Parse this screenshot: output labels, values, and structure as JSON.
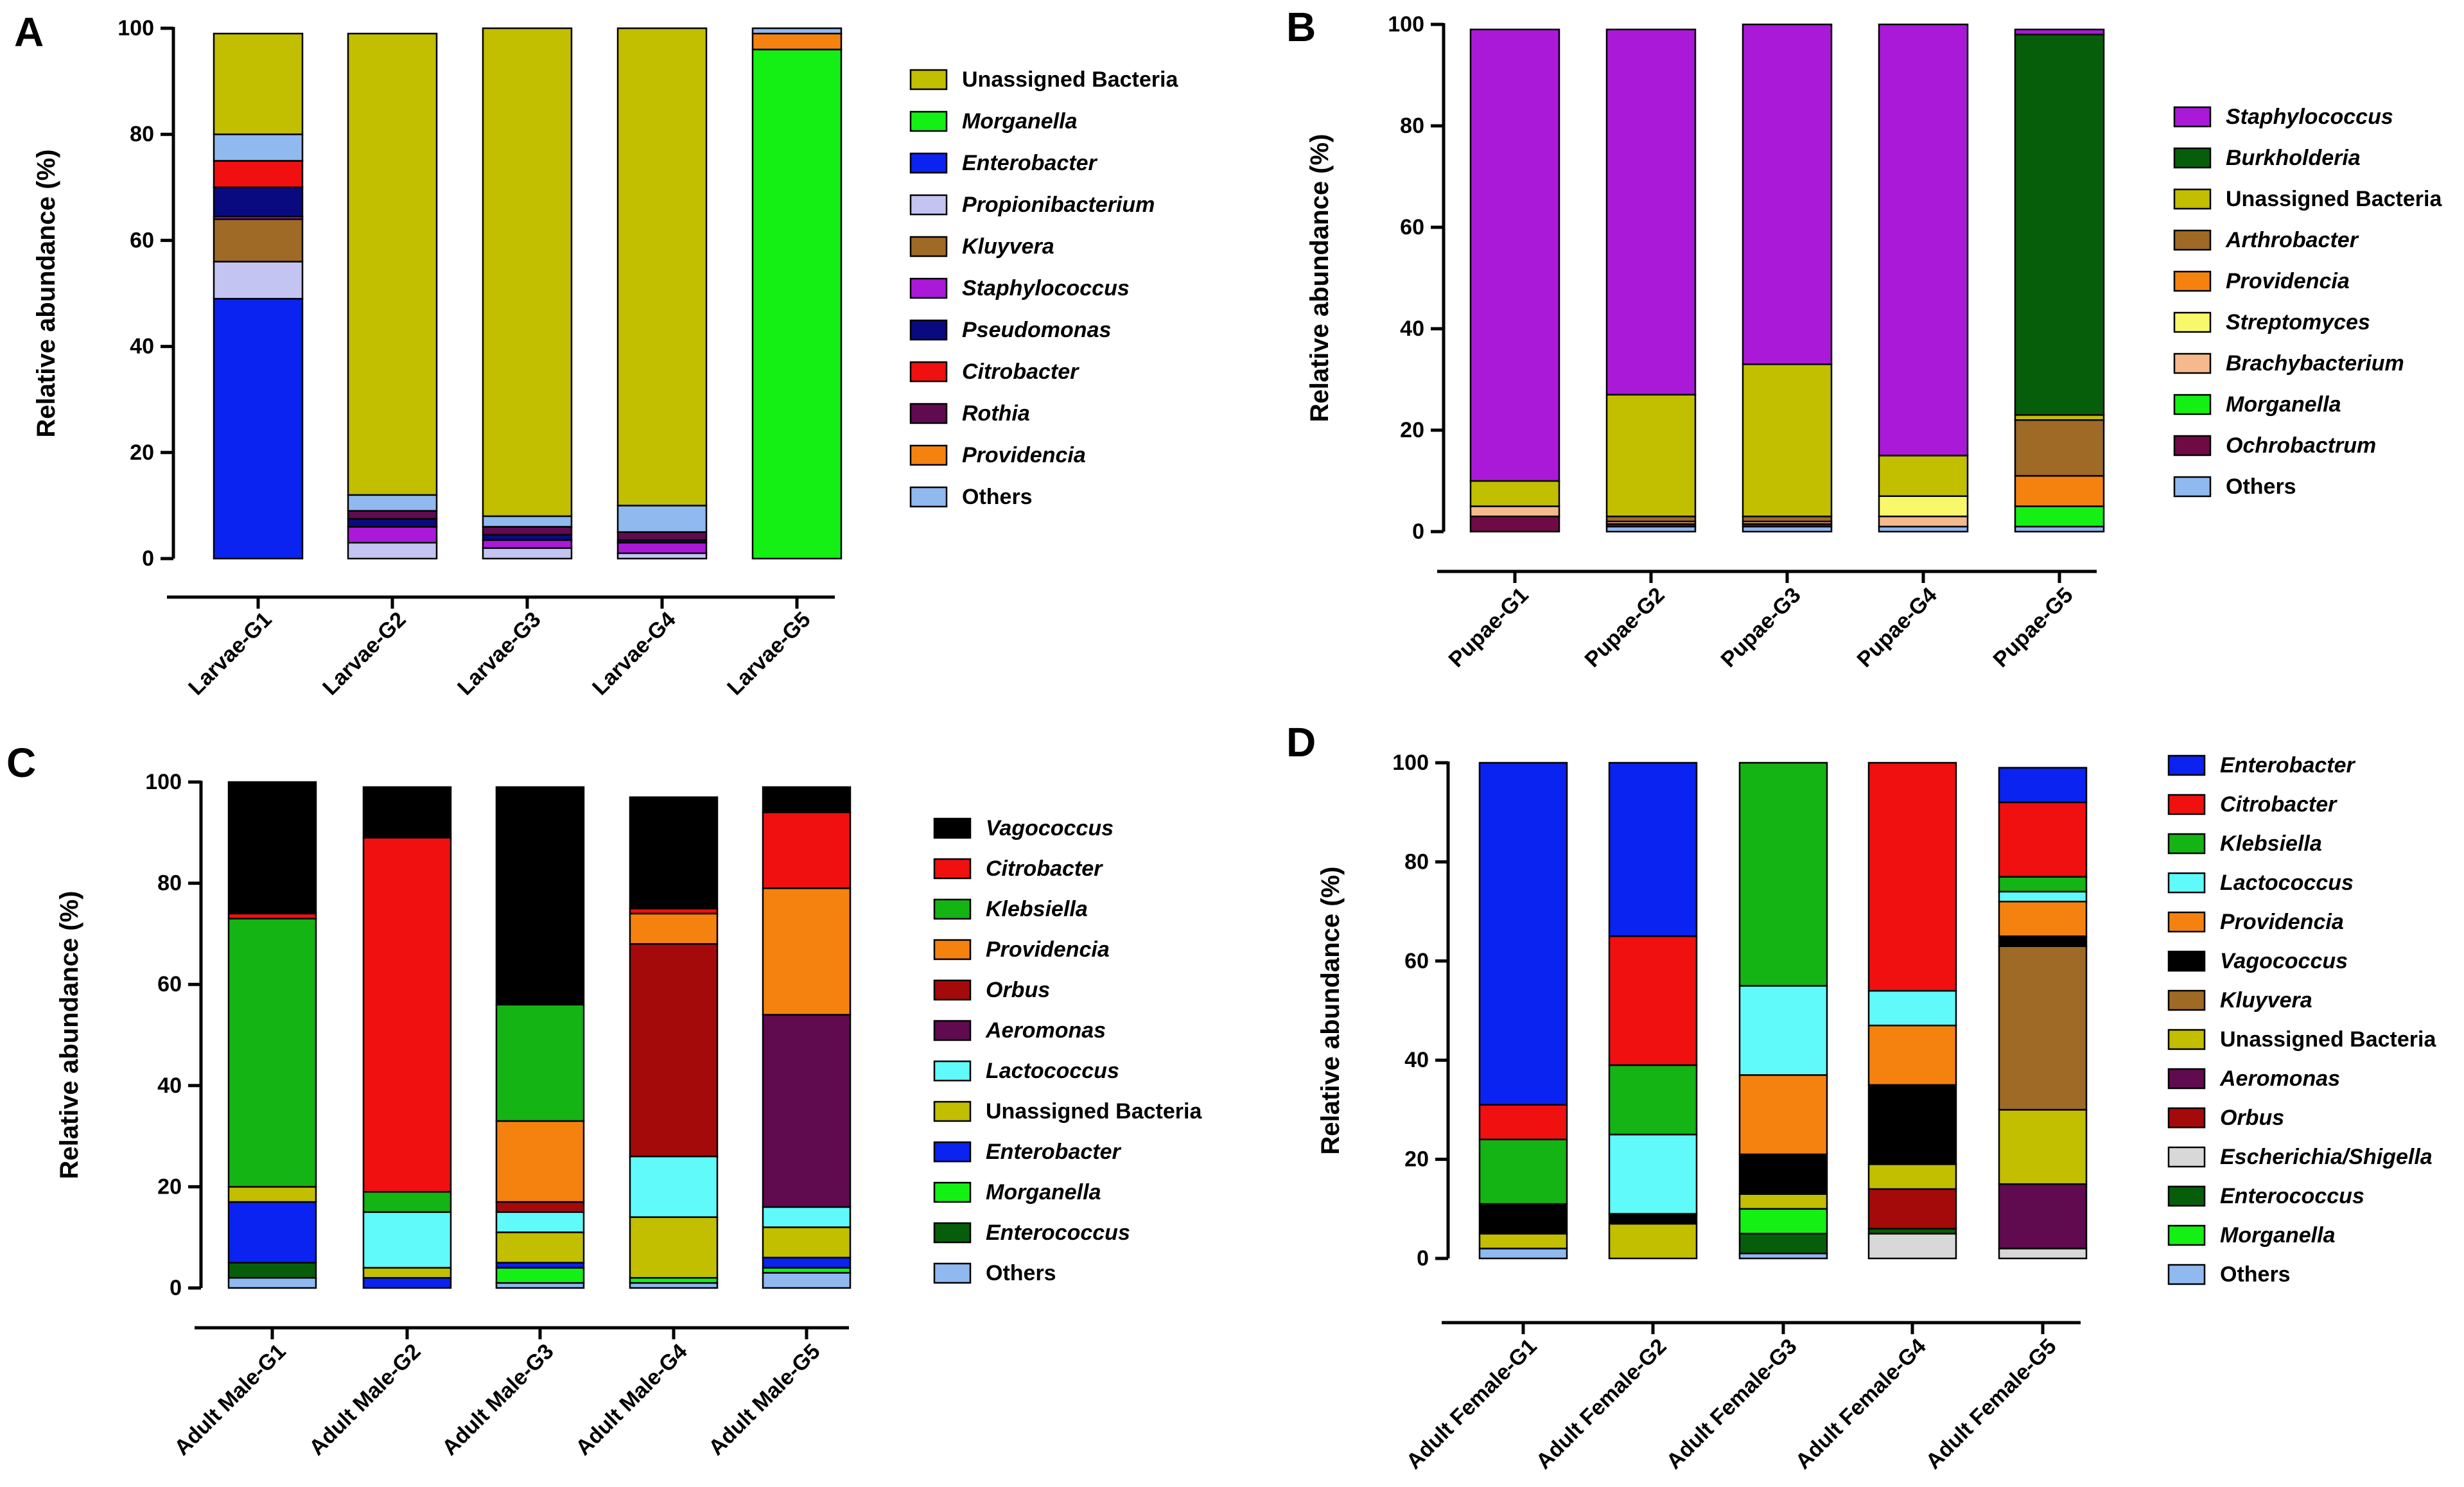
{
  "panels": [
    {
      "letter": "A",
      "chart_data": {
        "type": "bar",
        "stacked": true,
        "title": "",
        "xlabel": "",
        "ylabel": "Relative abundance (%)",
        "ylim": [
          0,
          100
        ],
        "yticks": [
          "0",
          "20",
          "40",
          "60",
          "80",
          "100"
        ],
        "categories": [
          "Larvae-G1",
          "Larvae-G2",
          "Larvae-G3",
          "Larvae-G4",
          "Larvae-G5"
        ],
        "series": [
          {
            "name": "Enterobacter",
            "italic": true,
            "color": "#0a23f0",
            "values": [
              49,
              0,
              0,
              0,
              0
            ]
          },
          {
            "name": "Propionibacterium",
            "italic": true,
            "color": "#c4c4f2",
            "values": [
              7,
              3,
              2,
              1,
              0
            ]
          },
          {
            "name": "Kluyvera",
            "italic": true,
            "color": "#9e6a25",
            "values": [
              8,
              0,
              0,
              0,
              0
            ]
          },
          {
            "name": "Staphylococcus",
            "italic": true,
            "color": "#aa19d8",
            "values": [
              0.5,
              3,
              1.5,
              2,
              0
            ]
          },
          {
            "name": "Pseudomonas",
            "italic": true,
            "color": "#0a0a80",
            "values": [
              5.5,
              1.5,
              1,
              0.5,
              0
            ]
          },
          {
            "name": "Citrobacter",
            "italic": true,
            "color": "#f01010",
            "values": [
              5,
              0,
              0,
              0,
              0
            ]
          },
          {
            "name": "Rothia",
            "italic": true,
            "color": "#600a50",
            "values": [
              0,
              1.5,
              1.5,
              1.5,
              0
            ]
          },
          {
            "name": "Morganella",
            "italic": true,
            "color": "#14f014",
            "values": [
              0,
              0,
              0,
              0,
              96
            ]
          },
          {
            "name": "Providencia",
            "italic": true,
            "color": "#f5820f",
            "values": [
              0,
              0,
              0,
              0,
              3
            ]
          },
          {
            "name": "Others",
            "italic": false,
            "color": "#8fb9ef",
            "values": [
              5,
              3,
              2,
              5,
              1
            ]
          },
          {
            "name": "Unassigned Bacteria",
            "italic": false,
            "color": "#c2be00",
            "values": [
              19,
              87,
              92,
              90,
              0
            ]
          }
        ],
        "legend_order": [
          "Unassigned Bacteria",
          "Morganella",
          "Enterobacter",
          "Propionibacterium",
          "Kluyvera",
          "Staphylococcus",
          "Pseudomonas",
          "Citrobacter",
          "Rothia",
          "Providencia",
          "Others"
        ],
        "legend_position": "right"
      }
    },
    {
      "letter": "B",
      "chart_data": {
        "type": "bar",
        "stacked": true,
        "title": "",
        "xlabel": "",
        "ylabel": "Relative abundance (%)",
        "ylim": [
          0,
          100
        ],
        "yticks": [
          "0",
          "20",
          "40",
          "60",
          "80",
          "100"
        ],
        "categories": [
          "Pupae-G1",
          "Pupae-G2",
          "Pupae-G3",
          "Pupae-G4",
          "Pupae-G5"
        ],
        "series": [
          {
            "name": "Others",
            "italic": false,
            "color": "#8fb9ef",
            "values": [
              0,
              1,
              1,
              1,
              1
            ]
          },
          {
            "name": "Ochrobactrum",
            "italic": true,
            "color": "#700a45",
            "values": [
              3,
              0.5,
              0.5,
              0,
              0
            ]
          },
          {
            "name": "Morganella",
            "italic": true,
            "color": "#14f014",
            "values": [
              0,
              0,
              0,
              0,
              4
            ]
          },
          {
            "name": "Brachybacterium",
            "italic": true,
            "color": "#f5b98c",
            "values": [
              2,
              0.5,
              0.5,
              2,
              0
            ]
          },
          {
            "name": "Streptomyces",
            "italic": true,
            "color": "#f8f86a",
            "values": [
              0,
              0,
              0,
              4,
              0
            ]
          },
          {
            "name": "Providencia",
            "italic": true,
            "color": "#f5820f",
            "values": [
              0,
              0,
              0,
              0,
              6
            ]
          },
          {
            "name": "Arthrobacter",
            "italic": true,
            "color": "#9e6a25",
            "values": [
              0,
              1,
              1,
              0,
              11
            ]
          },
          {
            "name": "Unassigned Bacteria",
            "italic": false,
            "color": "#c2be00",
            "values": [
              5,
              24,
              30,
              8,
              1
            ]
          },
          {
            "name": "Burkholderia",
            "italic": true,
            "color": "#075e0a",
            "values": [
              0,
              0,
              0,
              0,
              75
            ]
          },
          {
            "name": "Staphylococcus",
            "italic": true,
            "color": "#aa19d8",
            "values": [
              89,
              72,
              67,
              85,
              1
            ]
          }
        ],
        "legend_order": [
          "Staphylococcus",
          "Burkholderia",
          "Unassigned Bacteria",
          "Arthrobacter",
          "Providencia",
          "Streptomyces",
          "Brachybacterium",
          "Morganella",
          "Ochrobactrum",
          "Others"
        ],
        "legend_position": "right"
      }
    },
    {
      "letter": "C",
      "chart_data": {
        "type": "bar",
        "stacked": true,
        "title": "",
        "xlabel": "",
        "ylabel": "Relative abundance (%)",
        "ylim": [
          0,
          100
        ],
        "yticks": [
          "0",
          "20",
          "40",
          "60",
          "80",
          "100"
        ],
        "categories": [
          "Adult Male-G1",
          "Adult Male-G2",
          "Adult Male-G3",
          "Adult Male-G4",
          "Adult Male-G5"
        ],
        "series": [
          {
            "name": "Others",
            "italic": false,
            "color": "#8fb9ef",
            "values": [
              2,
              0,
              1,
              1,
              3
            ]
          },
          {
            "name": "Enterococcus",
            "italic": true,
            "color": "#075e0a",
            "values": [
              3,
              0,
              0,
              0,
              0
            ]
          },
          {
            "name": "Morganella",
            "italic": true,
            "color": "#14f014",
            "values": [
              0,
              0,
              3,
              1,
              1
            ]
          },
          {
            "name": "Enterobacter",
            "italic": true,
            "color": "#0a23f0",
            "values": [
              12,
              2,
              1,
              0,
              2
            ]
          },
          {
            "name": "Unassigned Bacteria",
            "italic": false,
            "color": "#c2be00",
            "values": [
              3,
              2,
              6,
              12,
              6
            ]
          },
          {
            "name": "Lactococcus",
            "italic": true,
            "color": "#60fafa",
            "values": [
              0,
              11,
              4,
              12,
              4
            ]
          },
          {
            "name": "Aeromonas",
            "italic": true,
            "color": "#600a50",
            "values": [
              0,
              0,
              0,
              0,
              38
            ]
          },
          {
            "name": "Orbus",
            "italic": true,
            "color": "#a50a0a",
            "values": [
              0,
              0,
              2,
              42,
              0
            ]
          },
          {
            "name": "Providencia",
            "italic": true,
            "color": "#f5820f",
            "values": [
              0,
              0,
              16,
              6,
              25
            ]
          },
          {
            "name": "Klebsiella",
            "italic": true,
            "color": "#14b414",
            "values": [
              53,
              4,
              23,
              0,
              0
            ]
          },
          {
            "name": "Citrobacter",
            "italic": true,
            "color": "#f01010",
            "values": [
              1,
              70,
              0,
              1,
              15
            ]
          },
          {
            "name": "Vagococcus",
            "italic": true,
            "color": "#000000",
            "values": [
              26,
              10,
              43,
              22,
              5
            ]
          }
        ],
        "legend_order": [
          "Vagococcus",
          "Citrobacter",
          "Klebsiella",
          "Providencia",
          "Orbus",
          "Aeromonas",
          "Lactococcus",
          "Unassigned Bacteria",
          "Enterobacter",
          "Morganella",
          "Enterococcus",
          "Others"
        ],
        "legend_position": "right"
      }
    },
    {
      "letter": "D",
      "chart_data": {
        "type": "bar",
        "stacked": true,
        "title": "",
        "xlabel": "",
        "ylabel": "Relative abundance (%)",
        "ylim": [
          0,
          100
        ],
        "yticks": [
          "0",
          "20",
          "40",
          "60",
          "80",
          "100"
        ],
        "categories": [
          "Adult Female-G1",
          "Adult Female-G2",
          "Adult Female-G3",
          "Adult Female-G4",
          "Adult Female-G5"
        ],
        "series": [
          {
            "name": "Others",
            "italic": false,
            "color": "#8fb9ef",
            "values": [
              2,
              0,
              1,
              0,
              0
            ]
          },
          {
            "name": "Escherichia/Shigella",
            "italic": true,
            "color": "#d8d8d8",
            "values": [
              0,
              0,
              0,
              5,
              2
            ]
          },
          {
            "name": "Enterococcus",
            "italic": true,
            "color": "#075e0a",
            "values": [
              0,
              0,
              4,
              1,
              0
            ]
          },
          {
            "name": "Morganella",
            "italic": true,
            "color": "#14f014",
            "values": [
              0,
              0,
              5,
              0,
              0
            ]
          },
          {
            "name": "Orbus",
            "italic": true,
            "color": "#a50a0a",
            "values": [
              0,
              0,
              0,
              8,
              0
            ]
          },
          {
            "name": "Aeromonas",
            "italic": true,
            "color": "#600a50",
            "values": [
              0,
              0,
              0,
              0,
              13
            ]
          },
          {
            "name": "Unassigned Bacteria",
            "italic": false,
            "color": "#c2be00",
            "values": [
              3,
              7,
              3,
              5,
              15
            ]
          },
          {
            "name": "Kluyvera",
            "italic": true,
            "color": "#9e6a25",
            "values": [
              0,
              0,
              0,
              0,
              33
            ]
          },
          {
            "name": "Vagococcus",
            "italic": true,
            "color": "#000000",
            "values": [
              6,
              2,
              8,
              16,
              2
            ]
          },
          {
            "name": "Providencia",
            "italic": true,
            "color": "#f5820f",
            "values": [
              0,
              0,
              16,
              12,
              7
            ]
          },
          {
            "name": "Lactococcus",
            "italic": true,
            "color": "#60fafa",
            "values": [
              0,
              16,
              18,
              7,
              2
            ]
          },
          {
            "name": "Klebsiella",
            "italic": true,
            "color": "#14b414",
            "values": [
              13,
              14,
              45,
              0,
              3
            ]
          },
          {
            "name": "Citrobacter",
            "italic": true,
            "color": "#f01010",
            "values": [
              7,
              26,
              0,
              46,
              15
            ]
          },
          {
            "name": "Enterobacter",
            "italic": true,
            "color": "#0a23f0",
            "values": [
              69,
              35,
              0,
              0,
              7
            ]
          }
        ],
        "legend_order": [
          "Enterobacter",
          "Citrobacter",
          "Klebsiella",
          "Lactococcus",
          "Providencia",
          "Vagococcus",
          "Kluyvera",
          "Unassigned Bacteria",
          "Aeromonas",
          "Orbus",
          "Escherichia/Shigella",
          "Enterococcus",
          "Morganella",
          "Others"
        ],
        "legend_position": "right"
      }
    }
  ]
}
